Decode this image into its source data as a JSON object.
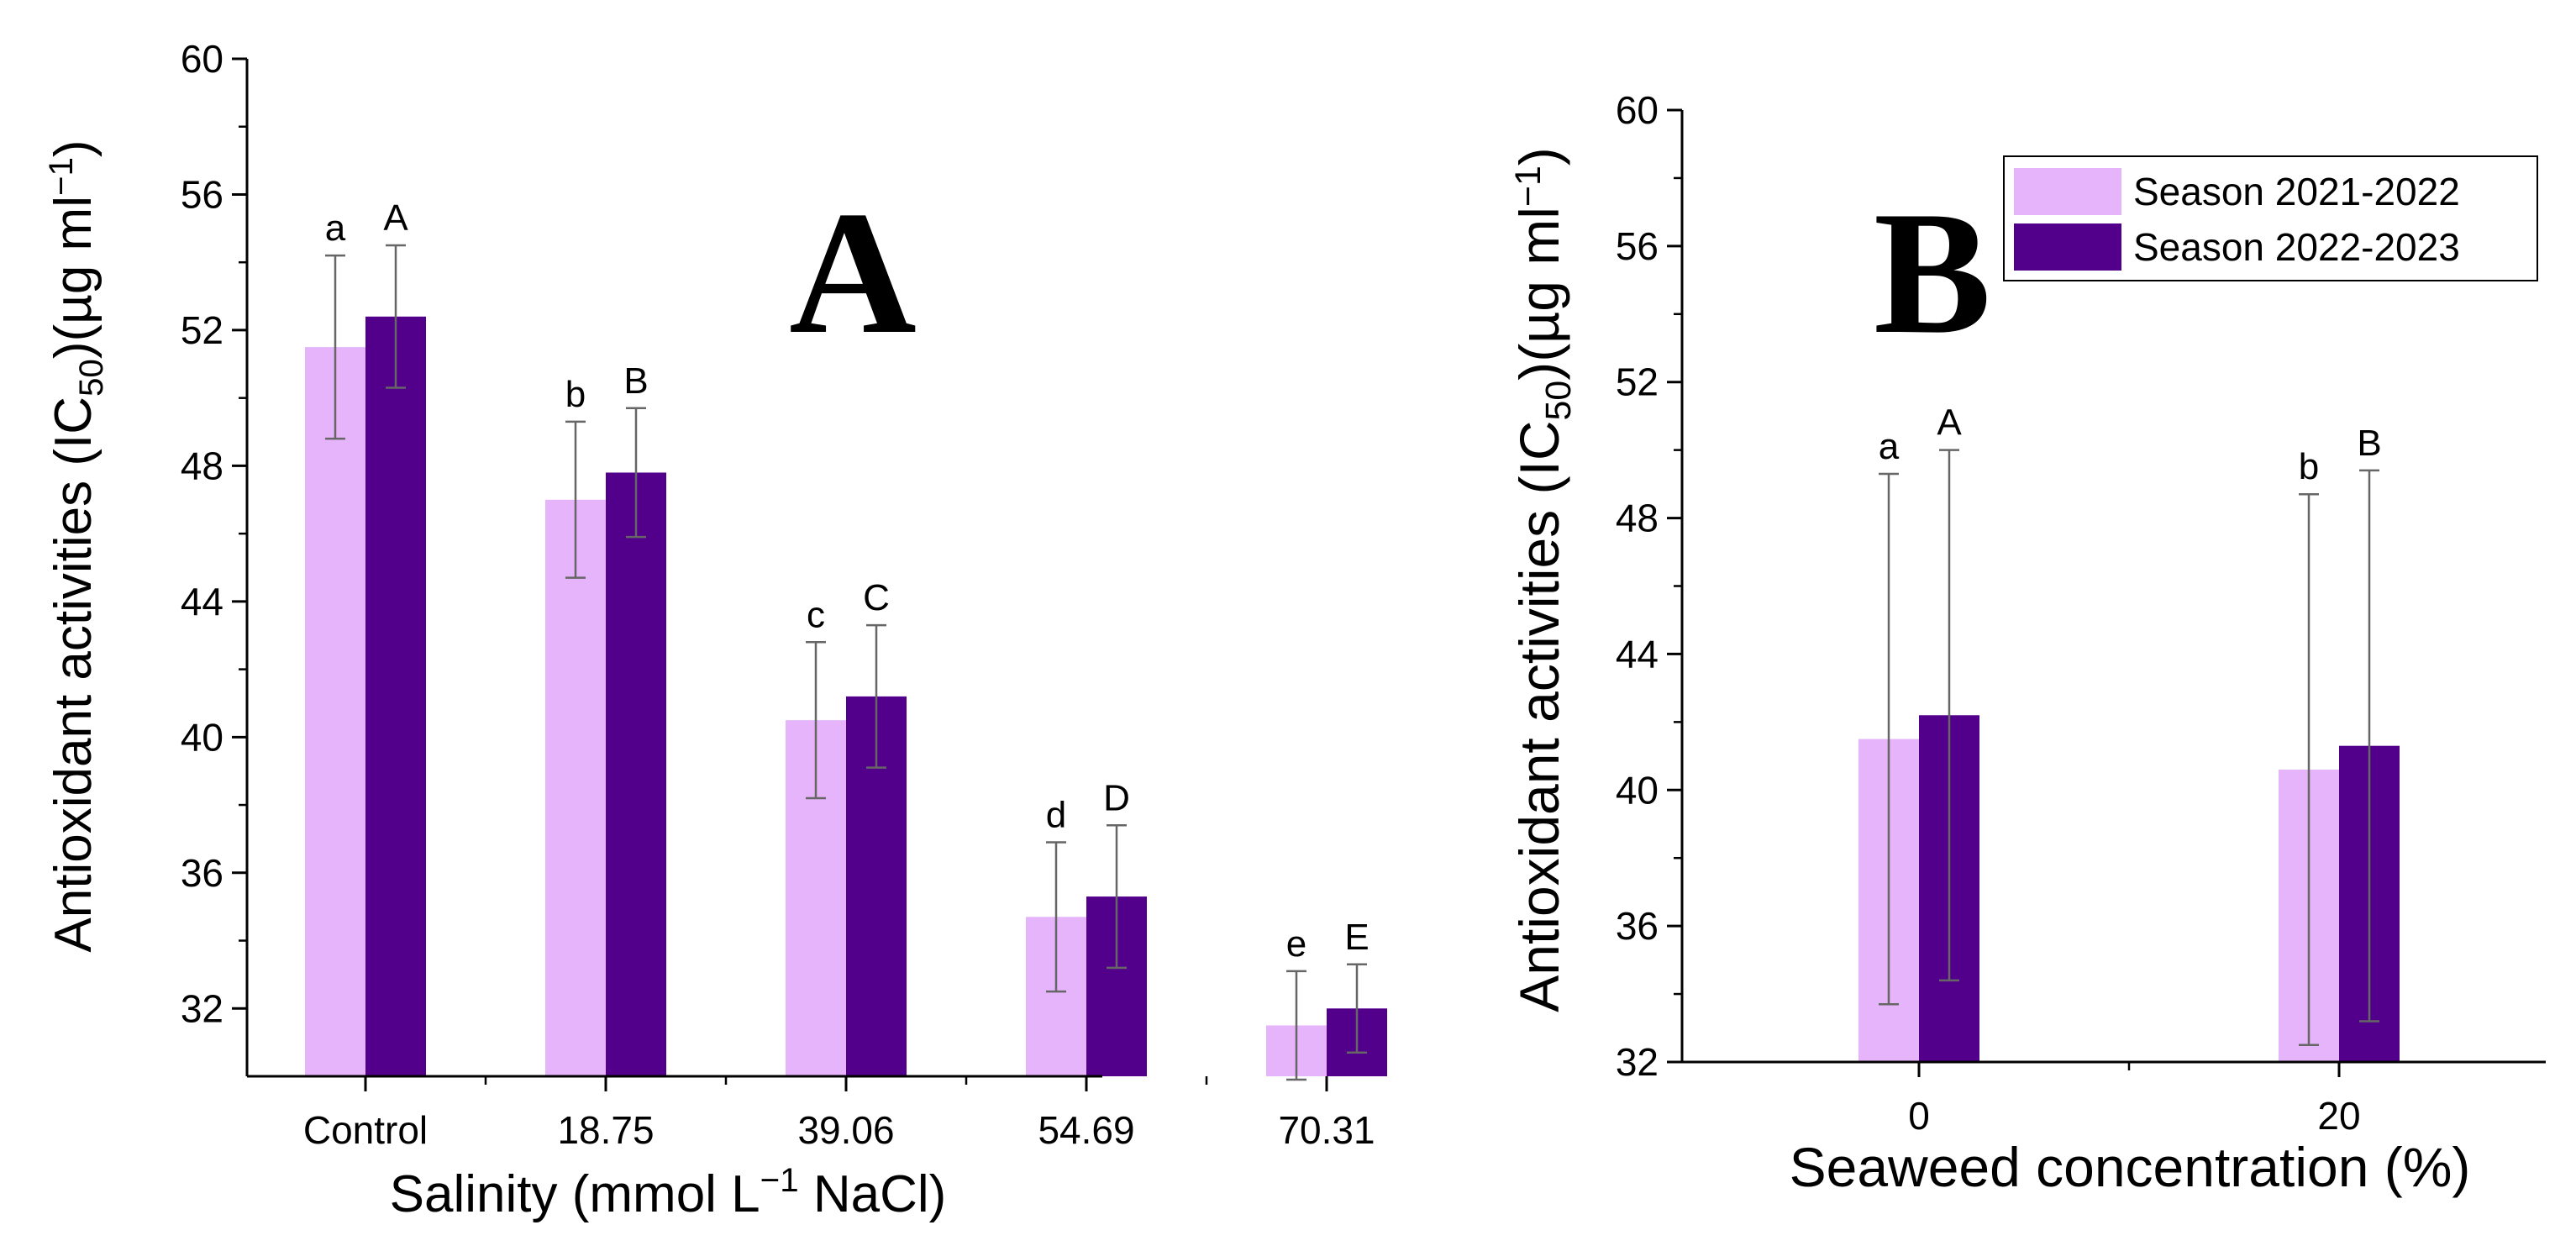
{
  "colors": {
    "season1": "#e6b4fa",
    "season2": "#52008c",
    "axis": "#000000",
    "errorbar": "#666666"
  },
  "chart_data": [
    {
      "type": "bar",
      "panel_label": "A",
      "title": "",
      "xlabel": {
        "pre": "Salinity (mmol L",
        "sup": "−1",
        "post": " NaCl)"
      },
      "ylabel": {
        "pre": "Antioxidant activities (IC",
        "sub": "50",
        "mid": ")(µg ml",
        "sup": "−1",
        "post": ")"
      },
      "categories": [
        "Control",
        "18.75",
        "39.06",
        "54.69",
        "70.31"
      ],
      "ylim": [
        30,
        60
      ],
      "yticks": [
        32,
        36,
        40,
        44,
        48,
        52,
        56,
        60
      ],
      "tick_labels": [
        "32",
        "36",
        "40",
        "44",
        "48",
        "52",
        "56",
        "60"
      ],
      "series": [
        {
          "name": "Season 2021-2022",
          "values": [
            51.5,
            47.0,
            40.5,
            34.7,
            31.5
          ],
          "errors": [
            2.7,
            2.3,
            2.3,
            2.2,
            1.6
          ],
          "letters": [
            "a",
            "b",
            "c",
            "d",
            "e"
          ]
        },
        {
          "name": "Season 2022-2023",
          "values": [
            52.4,
            47.8,
            41.2,
            35.3,
            32.0
          ],
          "errors": [
            2.1,
            1.9,
            2.1,
            2.1,
            1.3
          ],
          "letters": [
            "A",
            "B",
            "C",
            "D",
            "E"
          ]
        }
      ]
    },
    {
      "type": "bar",
      "panel_label": "B",
      "title": "",
      "xlabel": {
        "pre": "Seaweed concentration (%)",
        "sup": "",
        "post": ""
      },
      "ylabel": {
        "pre": "Antioxidant activities (IC",
        "sub": "50",
        "mid": ")(µg ml",
        "sup": "−1",
        "post": ")"
      },
      "categories": [
        "0",
        "20"
      ],
      "ylim": [
        32,
        60
      ],
      "yticks": [
        32,
        36,
        40,
        44,
        48,
        52,
        56,
        60
      ],
      "tick_labels": [
        "32",
        "36",
        "40",
        "44",
        "48",
        "52",
        "56",
        "60"
      ],
      "legend": {
        "position": "top-right",
        "entries": [
          "Season 2021-2022",
          "Season 2022-2023"
        ]
      },
      "series": [
        {
          "name": "Season 2021-2022",
          "values": [
            41.5,
            40.6
          ],
          "errors": [
            7.8,
            8.1
          ],
          "letters": [
            "a",
            "b"
          ]
        },
        {
          "name": "Season 2022-2023",
          "values": [
            42.2,
            41.3
          ],
          "errors": [
            7.8,
            8.1
          ],
          "letters": [
            "A",
            "B"
          ]
        }
      ]
    }
  ]
}
